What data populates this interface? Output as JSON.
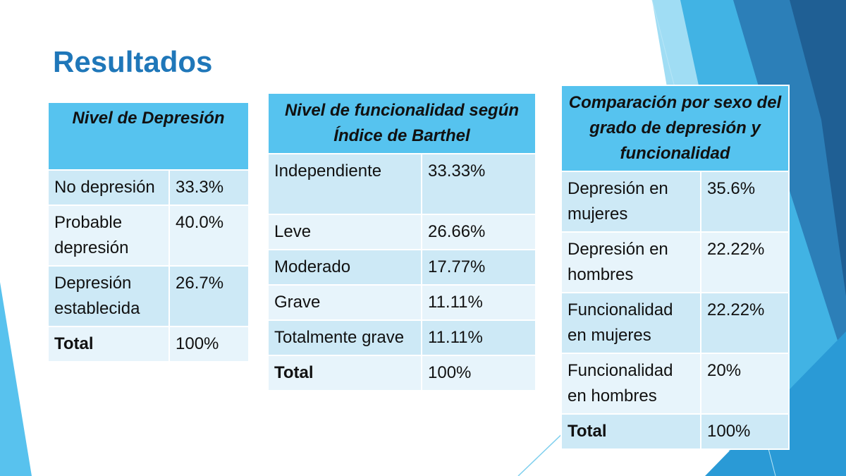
{
  "slide": {
    "title": "Resultados"
  },
  "tables": [
    {
      "header": "Nivel de Depresión",
      "rows": [
        {
          "label": "No depresión",
          "value": "33.3%"
        },
        {
          "label": "Probable depresión",
          "value": "40.0%"
        },
        {
          "label": "Depresión establecida",
          "value": "26.7%"
        },
        {
          "label": "Total",
          "value": "100%"
        }
      ]
    },
    {
      "header": "Nivel de funcionalidad según Índice de Barthel",
      "rows": [
        {
          "label": "Independiente",
          "value": "33.33%"
        },
        {
          "label": "Leve",
          "value": "26.66%"
        },
        {
          "label": "Moderado",
          "value": "17.77%"
        },
        {
          "label": "Grave",
          "value": "11.11%"
        },
        {
          "label": "Totalmente grave",
          "value": "11.11%"
        },
        {
          "label": "Total",
          "value": "100%"
        }
      ]
    },
    {
      "header": "Comparación por sexo del grado de depresión y funcionalidad",
      "rows": [
        {
          "label": "Depresión en mujeres",
          "value": "35.6%"
        },
        {
          "label": "Depresión en hombres",
          "value": "22.22%"
        },
        {
          "label": "Funcionalidad en mujeres",
          "value": "22.22%"
        },
        {
          "label": "Funcionalidad en hombres",
          "value": "20%"
        },
        {
          "label": "Total",
          "value": "100%"
        }
      ]
    }
  ],
  "colors": {
    "title": "#1f77b9",
    "header_fill": "#56c3ef",
    "row_dark": "#cde9f6",
    "row_light": "#e7f4fb",
    "accent_dark": "#1f6fa8",
    "accent_light": "#7ecfee"
  }
}
